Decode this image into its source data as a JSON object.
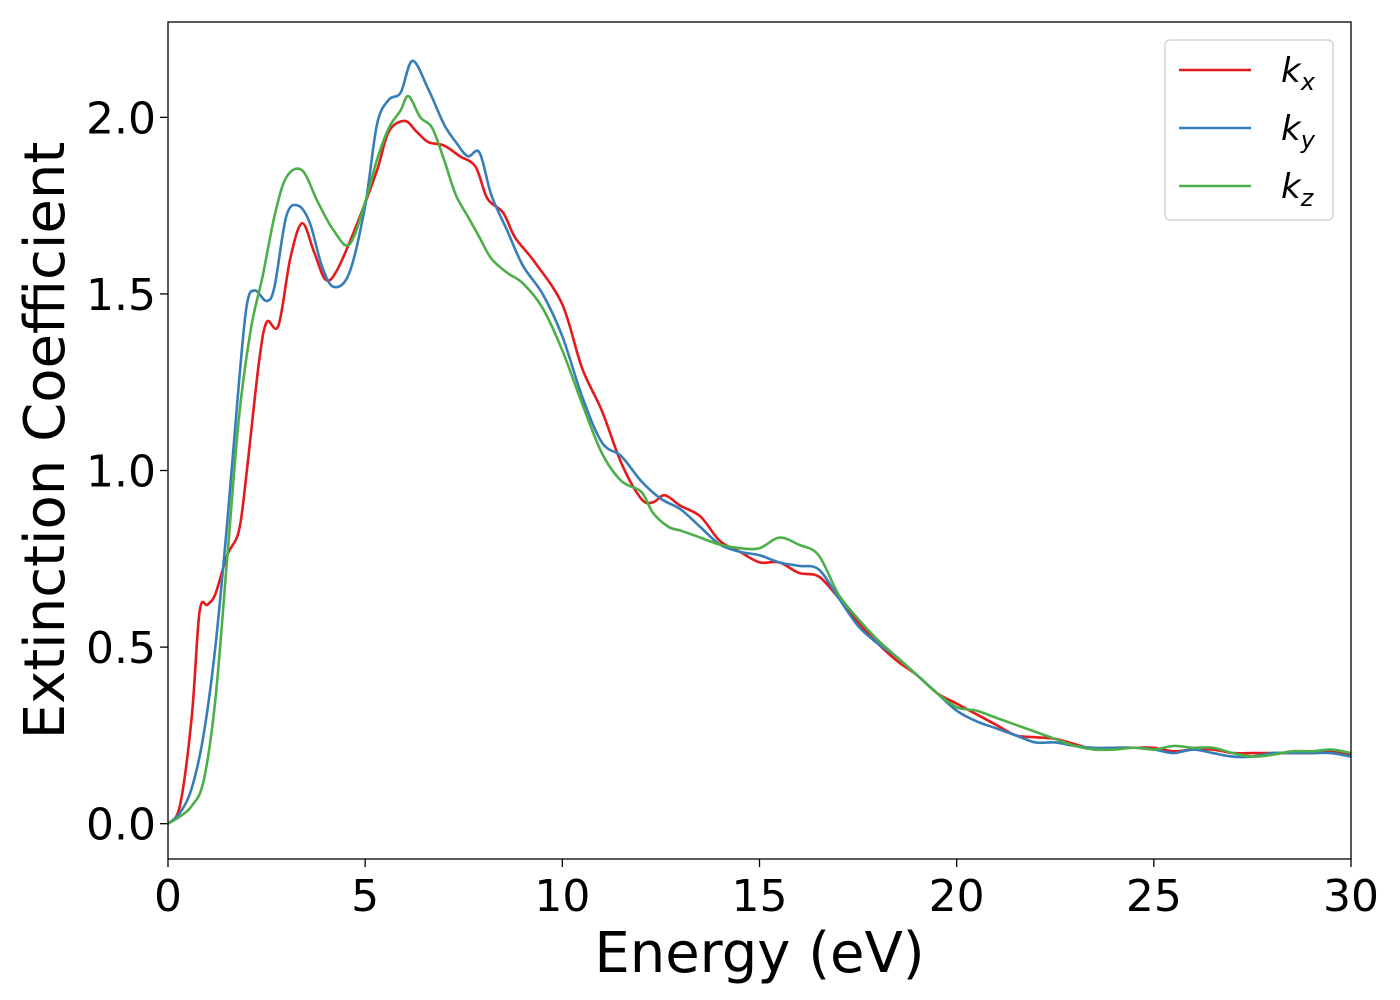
{
  "chart_data": {
    "type": "line",
    "title": "",
    "xlabel": "Energy (eV)",
    "ylabel": "Extinction Coefficient",
    "xlim": [
      0,
      30
    ],
    "ylim": [
      -0.1,
      2.27
    ],
    "xticks": [
      0,
      5,
      10,
      15,
      20,
      25,
      30
    ],
    "xtick_labels": [
      "0",
      "5",
      "10",
      "15",
      "20",
      "25",
      "30"
    ],
    "yticks": [
      0.0,
      0.5,
      1.0,
      1.5,
      2.0
    ],
    "ytick_labels": [
      "0.0",
      "0.5",
      "1.0",
      "1.5",
      "2.0"
    ],
    "grid": false,
    "legend_position": "top-right",
    "series": [
      {
        "name": "k_x",
        "label_main": "k",
        "label_sub": "x",
        "color": "#e41a1c",
        "points": [
          [
            0,
            0
          ],
          [
            0.3,
            0.05
          ],
          [
            0.6,
            0.3
          ],
          [
            0.8,
            0.6
          ],
          [
            1.0,
            0.62
          ],
          [
            1.2,
            0.65
          ],
          [
            1.5,
            0.76
          ],
          [
            1.8,
            0.83
          ],
          [
            2.0,
            1.0
          ],
          [
            2.3,
            1.3
          ],
          [
            2.5,
            1.42
          ],
          [
            2.8,
            1.41
          ],
          [
            3.1,
            1.6
          ],
          [
            3.4,
            1.7
          ],
          [
            3.7,
            1.62
          ],
          [
            4.0,
            1.54
          ],
          [
            4.3,
            1.57
          ],
          [
            4.8,
            1.7
          ],
          [
            5.3,
            1.85
          ],
          [
            5.6,
            1.96
          ],
          [
            6.0,
            1.99
          ],
          [
            6.3,
            1.96
          ],
          [
            6.6,
            1.93
          ],
          [
            7.0,
            1.92
          ],
          [
            7.4,
            1.89
          ],
          [
            7.8,
            1.86
          ],
          [
            8.1,
            1.77
          ],
          [
            8.5,
            1.73
          ],
          [
            8.8,
            1.66
          ],
          [
            9.3,
            1.59
          ],
          [
            10.0,
            1.47
          ],
          [
            10.5,
            1.29
          ],
          [
            11.0,
            1.17
          ],
          [
            11.5,
            1.02
          ],
          [
            12.0,
            0.92
          ],
          [
            12.3,
            0.91
          ],
          [
            12.6,
            0.93
          ],
          [
            13.0,
            0.9
          ],
          [
            13.5,
            0.87
          ],
          [
            14.0,
            0.8
          ],
          [
            14.5,
            0.77
          ],
          [
            15.0,
            0.74
          ],
          [
            15.5,
            0.74
          ],
          [
            16.0,
            0.71
          ],
          [
            16.5,
            0.7
          ],
          [
            17.0,
            0.64
          ],
          [
            17.5,
            0.57
          ],
          [
            18.0,
            0.51
          ],
          [
            18.5,
            0.46
          ],
          [
            19.0,
            0.42
          ],
          [
            19.5,
            0.37
          ],
          [
            20.0,
            0.34
          ],
          [
            20.5,
            0.31
          ],
          [
            21.0,
            0.28
          ],
          [
            21.5,
            0.25
          ],
          [
            22.0,
            0.245
          ],
          [
            22.5,
            0.24
          ],
          [
            23.0,
            0.225
          ],
          [
            23.5,
            0.21
          ],
          [
            24.0,
            0.215
          ],
          [
            24.5,
            0.215
          ],
          [
            25.0,
            0.215
          ],
          [
            25.5,
            0.205
          ],
          [
            26.0,
            0.21
          ],
          [
            26.5,
            0.21
          ],
          [
            27.0,
            0.2
          ],
          [
            27.5,
            0.2
          ],
          [
            28.0,
            0.2
          ],
          [
            28.5,
            0.2
          ],
          [
            29.0,
            0.2
          ],
          [
            29.5,
            0.205
          ],
          [
            30.0,
            0.195
          ]
        ]
      },
      {
        "name": "k_y",
        "label_main": "k",
        "label_sub": "y",
        "color": "#377eb8",
        "points": [
          [
            0,
            0
          ],
          [
            0.3,
            0.03
          ],
          [
            0.6,
            0.1
          ],
          [
            0.9,
            0.25
          ],
          [
            1.2,
            0.5
          ],
          [
            1.5,
            0.85
          ],
          [
            1.8,
            1.25
          ],
          [
            2.0,
            1.47
          ],
          [
            2.2,
            1.51
          ],
          [
            2.5,
            1.48
          ],
          [
            2.7,
            1.52
          ],
          [
            3.0,
            1.72
          ],
          [
            3.3,
            1.75
          ],
          [
            3.6,
            1.7
          ],
          [
            3.9,
            1.58
          ],
          [
            4.2,
            1.52
          ],
          [
            4.6,
            1.56
          ],
          [
            5.0,
            1.75
          ],
          [
            5.3,
            1.98
          ],
          [
            5.6,
            2.05
          ],
          [
            5.9,
            2.07
          ],
          [
            6.2,
            2.16
          ],
          [
            6.6,
            2.08
          ],
          [
            7.0,
            1.98
          ],
          [
            7.3,
            1.93
          ],
          [
            7.6,
            1.89
          ],
          [
            7.9,
            1.9
          ],
          [
            8.2,
            1.78
          ],
          [
            8.6,
            1.68
          ],
          [
            9.0,
            1.58
          ],
          [
            9.5,
            1.5
          ],
          [
            10.0,
            1.38
          ],
          [
            10.5,
            1.21
          ],
          [
            11.0,
            1.08
          ],
          [
            11.5,
            1.04
          ],
          [
            12.0,
            0.97
          ],
          [
            12.5,
            0.92
          ],
          [
            13.0,
            0.89
          ],
          [
            13.5,
            0.84
          ],
          [
            14.0,
            0.79
          ],
          [
            14.5,
            0.77
          ],
          [
            15.0,
            0.76
          ],
          [
            15.5,
            0.74
          ],
          [
            16.0,
            0.73
          ],
          [
            16.5,
            0.72
          ],
          [
            17.0,
            0.64
          ],
          [
            17.5,
            0.56
          ],
          [
            18.0,
            0.51
          ],
          [
            18.5,
            0.47
          ],
          [
            19.0,
            0.42
          ],
          [
            19.5,
            0.37
          ],
          [
            20.0,
            0.32
          ],
          [
            20.5,
            0.29
          ],
          [
            21.0,
            0.27
          ],
          [
            21.5,
            0.25
          ],
          [
            22.0,
            0.23
          ],
          [
            22.5,
            0.23
          ],
          [
            23.0,
            0.22
          ],
          [
            23.5,
            0.215
          ],
          [
            24.0,
            0.215
          ],
          [
            24.5,
            0.215
          ],
          [
            25.0,
            0.21
          ],
          [
            25.5,
            0.2
          ],
          [
            26.0,
            0.21
          ],
          [
            26.5,
            0.2
          ],
          [
            27.0,
            0.19
          ],
          [
            27.5,
            0.19
          ],
          [
            28.0,
            0.2
          ],
          [
            28.5,
            0.2
          ],
          [
            29.0,
            0.2
          ],
          [
            29.5,
            0.2
          ],
          [
            30.0,
            0.19
          ]
        ]
      },
      {
        "name": "k_z",
        "label_main": "k",
        "label_sub": "z",
        "color": "#4daf4a",
        "points": [
          [
            0,
            0
          ],
          [
            0.3,
            0.02
          ],
          [
            0.6,
            0.05
          ],
          [
            0.9,
            0.12
          ],
          [
            1.2,
            0.35
          ],
          [
            1.5,
            0.75
          ],
          [
            1.8,
            1.15
          ],
          [
            2.1,
            1.4
          ],
          [
            2.4,
            1.55
          ],
          [
            2.7,
            1.72
          ],
          [
            3.0,
            1.83
          ],
          [
            3.4,
            1.85
          ],
          [
            3.8,
            1.76
          ],
          [
            4.2,
            1.68
          ],
          [
            4.6,
            1.64
          ],
          [
            5.0,
            1.76
          ],
          [
            5.3,
            1.88
          ],
          [
            5.6,
            1.97
          ],
          [
            5.9,
            2.02
          ],
          [
            6.1,
            2.06
          ],
          [
            6.4,
            2.0
          ],
          [
            6.7,
            1.97
          ],
          [
            7.0,
            1.88
          ],
          [
            7.3,
            1.78
          ],
          [
            7.6,
            1.72
          ],
          [
            7.9,
            1.66
          ],
          [
            8.2,
            1.6
          ],
          [
            8.6,
            1.56
          ],
          [
            9.0,
            1.53
          ],
          [
            9.5,
            1.46
          ],
          [
            10.0,
            1.34
          ],
          [
            10.5,
            1.19
          ],
          [
            11.0,
            1.05
          ],
          [
            11.5,
            0.97
          ],
          [
            12.0,
            0.94
          ],
          [
            12.3,
            0.88
          ],
          [
            12.7,
            0.84
          ],
          [
            13.0,
            0.83
          ],
          [
            13.5,
            0.81
          ],
          [
            14.0,
            0.79
          ],
          [
            14.5,
            0.78
          ],
          [
            15.0,
            0.78
          ],
          [
            15.5,
            0.81
          ],
          [
            16.0,
            0.79
          ],
          [
            16.5,
            0.76
          ],
          [
            17.0,
            0.65
          ],
          [
            17.5,
            0.58
          ],
          [
            18.0,
            0.52
          ],
          [
            18.5,
            0.47
          ],
          [
            19.0,
            0.42
          ],
          [
            19.5,
            0.37
          ],
          [
            20.0,
            0.33
          ],
          [
            20.5,
            0.32
          ],
          [
            21.0,
            0.3
          ],
          [
            21.5,
            0.28
          ],
          [
            22.0,
            0.26
          ],
          [
            22.5,
            0.24
          ],
          [
            23.0,
            0.22
          ],
          [
            23.5,
            0.21
          ],
          [
            24.0,
            0.21
          ],
          [
            24.5,
            0.215
          ],
          [
            25.0,
            0.21
          ],
          [
            25.5,
            0.22
          ],
          [
            26.0,
            0.215
          ],
          [
            26.5,
            0.215
          ],
          [
            27.0,
            0.2
          ],
          [
            27.5,
            0.19
          ],
          [
            28.0,
            0.195
          ],
          [
            28.5,
            0.205
          ],
          [
            29.0,
            0.205
          ],
          [
            29.5,
            0.21
          ],
          [
            30.0,
            0.2
          ]
        ]
      }
    ]
  }
}
